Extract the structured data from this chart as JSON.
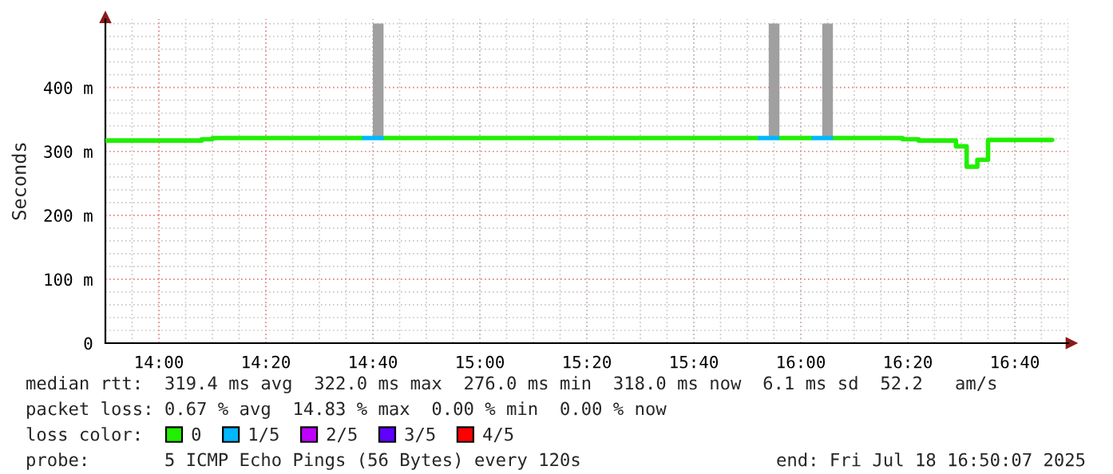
{
  "chart_data": {
    "type": "step",
    "ylabel": "Seconds",
    "x": [
      13.8333,
      14.1333,
      14.1667,
      14.6333,
      14.7,
      15.8667,
      15.9333,
      16.0333,
      16.1,
      16.3167,
      16.3667,
      16.4833,
      16.5167,
      16.55,
      16.5833,
      16.7833
    ],
    "series": [
      {
        "name": "0",
        "color": "#20f000",
        "values": [
          317,
          319,
          321,
          null,
          321,
          null,
          321,
          null,
          321,
          319,
          317,
          308,
          276,
          287,
          318,
          318
        ]
      },
      {
        "name": "1/5",
        "type": "line",
        "color": "#00b8ff",
        "x": [
          14.6333,
          14.7,
          15.0,
          15.8667,
          15.9333,
          16.0,
          16.0333,
          16.1
        ],
        "values": [
          321,
          321,
          null,
          321,
          321,
          null,
          321,
          321
        ]
      },
      {
        "name": "2/5",
        "color": "#c000ff",
        "values": [
          null,
          null,
          null,
          null,
          null,
          null,
          null,
          null,
          null,
          null,
          null,
          null,
          null,
          null,
          null,
          null
        ]
      },
      {
        "name": "3/5",
        "color": "#6000ff",
        "values": [
          null,
          null,
          null,
          null,
          null,
          null,
          null,
          null,
          null,
          null,
          null,
          null,
          null,
          null,
          null,
          null
        ]
      },
      {
        "name": "4/5",
        "color": "#ff0000",
        "values": [
          null,
          null,
          null,
          null,
          null,
          null,
          null,
          null,
          null,
          null,
          null,
          null,
          null,
          null,
          null,
          null
        ]
      },
      {
        "type": "bar",
        "color": "#a0a0a0",
        "x": [
          14.6833,
          15.9167,
          16.0833
        ],
        "base": [
          321,
          321,
          321
        ],
        "values": [
          179,
          179,
          179
        ]
      }
    ],
    "xlim": [
      13.8333,
      16.8333
    ],
    "xticks": [
      {
        "value": 14.0,
        "label": "14:00"
      },
      {
        "value": 14.3333,
        "label": "14:20"
      },
      {
        "value": 14.6667,
        "label": "14:40"
      },
      {
        "value": 15.0,
        "label": "15:00"
      },
      {
        "value": 15.3333,
        "label": "15:20"
      },
      {
        "value": 15.6667,
        "label": "15:40"
      },
      {
        "value": 16.0,
        "label": "16:00"
      },
      {
        "value": 16.3333,
        "label": "16:20"
      },
      {
        "value": 16.6667,
        "label": "16:40"
      }
    ],
    "ylim": [
      0,
      507
    ],
    "yticks": [
      0,
      {
        "value": 100,
        "label": "100 m"
      },
      {
        "value": 200,
        "label": "200 m"
      },
      {
        "value": 300,
        "label": "300 m"
      },
      {
        "value": 400,
        "label": "400 m"
      }
    ],
    "grid": true,
    "legend": "bottom",
    "legend_title": "loss color:",
    "annotations": [
      "median rtt:  319.4 ms avg  322.0 ms max  276.0 ms min  318.0 ms now  6.1 ms sd  52.2   am/s",
      "packet loss: 0.67 % avg  14.83 % max  0.00 % min  0.00 % now",
      "probe:       5 ICMP Echo Pings (56 Bytes) every 120s",
      "end: Fri Jul 18 16:50:07 2025"
    ]
  }
}
